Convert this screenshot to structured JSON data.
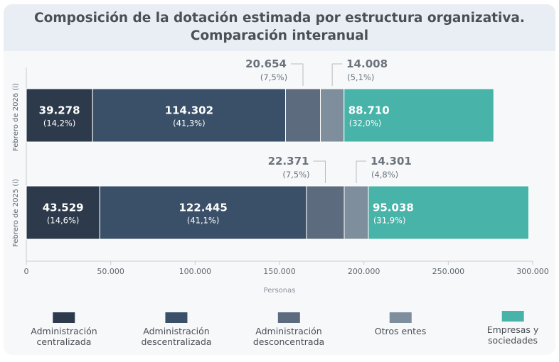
{
  "title_line1": "Composición de la dotación estimada por estructura organizativa.",
  "title_line2": "Comparación interanual",
  "colors": {
    "Administración centralizada": "#2c3a4b",
    "Administración descentralizada": "#3a5068",
    "Administración desconcentrada": "#5c6c7e",
    "Otros entes": "#7f8e9c",
    "Empresas y sociedades": "#47b3a9"
  },
  "legend": [
    {
      "line1": "Administración",
      "line2": "centralizada",
      "color": "#2c3a4b"
    },
    {
      "line1": "Administración",
      "line2": "descentralizada",
      "color": "#3a5068"
    },
    {
      "line1": "Administración",
      "line2": "desconcentrada",
      "color": "#5c6c7e"
    },
    {
      "line1": "Otros entes",
      "line2": "",
      "color": "#7f8e9c"
    },
    {
      "line1": "Empresas y",
      "line2": "sociedades",
      "color": "#47b3a9"
    }
  ],
  "chart_data": {
    "type": "bar",
    "orientation": "horizontal",
    "stacked": true,
    "title": "Composición de la dotación estimada por estructura organizativa. Comparación interanual",
    "xlabel": "Personas",
    "ylabel": "",
    "xlim": [
      0,
      300000
    ],
    "xticks": [
      0,
      50000,
      100000,
      150000,
      200000,
      250000,
      300000
    ],
    "xtick_labels": [
      "0",
      "50.000",
      "100.000",
      "150.000",
      "200.000",
      "250.000",
      "300.000"
    ],
    "categories": [
      "Febrero de 2026 (i)",
      "Febrero de 2025 (i)"
    ],
    "series": [
      {
        "name": "Administración centralizada",
        "values": [
          39278,
          43529
        ],
        "labels": [
          "39.278",
          "43.529"
        ],
        "pct": [
          "(14,2%)",
          "(14,6%)"
        ]
      },
      {
        "name": "Administración descentralizada",
        "values": [
          114302,
          122445
        ],
        "labels": [
          "114.302",
          "122.445"
        ],
        "pct": [
          "(41,3%)",
          "(41,1%)"
        ]
      },
      {
        "name": "Administración desconcentrada",
        "values": [
          20654,
          22371
        ],
        "labels": [
          "20.654",
          "22.371"
        ],
        "pct": [
          "(7,5%)",
          "(7,5%)"
        ]
      },
      {
        "name": "Otros entes",
        "values": [
          14008,
          14301
        ],
        "labels": [
          "14.008",
          "14.301"
        ],
        "pct": [
          "(5,1%)",
          "(4,8%)"
        ]
      },
      {
        "name": "Empresas y sociedades",
        "values": [
          88710,
          95038
        ],
        "labels": [
          "88.710",
          "95.038"
        ],
        "pct": [
          "(32,0%)",
          "(31,9%)"
        ]
      }
    ],
    "grid": false,
    "legend_position": "bottom"
  }
}
